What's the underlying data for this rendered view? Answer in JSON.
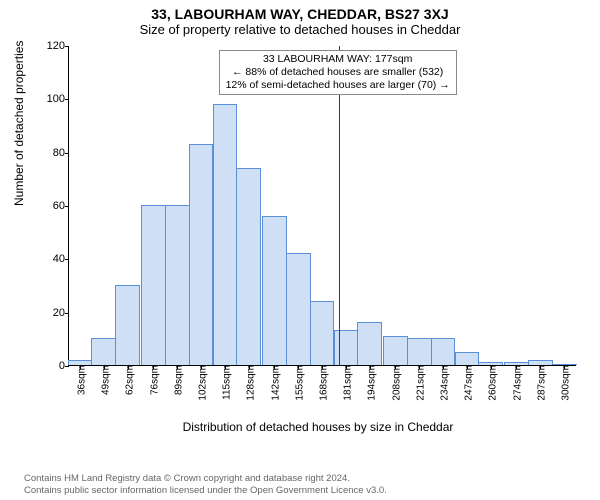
{
  "title": "33, LABOURHAM WAY, CHEDDAR, BS27 3XJ",
  "subtitle": "Size of property relative to detached houses in Cheddar",
  "ylabel": "Number of detached properties",
  "xlabel": "Distribution of detached houses by size in Cheddar",
  "credit_line1": "Contains HM Land Registry data © Crown copyright and database right 2024.",
  "credit_line2": "Contains public sector information licensed under the Open Government Licence v3.0.",
  "chart": {
    "type": "histogram",
    "background_color": "#ffffff",
    "bar_fill": "#cfe0f6",
    "bar_stroke": "#5b8fd6",
    "ylim": [
      0,
      120
    ],
    "ytick_step": 20,
    "yticks": [
      0,
      20,
      40,
      60,
      80,
      100,
      120
    ],
    "xlim": [
      30,
      307
    ],
    "xticks": [
      36,
      49,
      62,
      76,
      89,
      102,
      115,
      128,
      142,
      155,
      168,
      181,
      194,
      208,
      221,
      234,
      247,
      260,
      274,
      287,
      300
    ],
    "xtick_suffix": "sqm",
    "bin_width": 13.5,
    "values": [
      2,
      10,
      30,
      60,
      60,
      83,
      98,
      74,
      56,
      42,
      24,
      13,
      16,
      11,
      10,
      10,
      5,
      1,
      1,
      2,
      0
    ],
    "reference_line": {
      "x": 177,
      "color": "#cc0000"
    },
    "annotation": {
      "lines": [
        "33 LABOURHAM WAY: 177sqm",
        "← 88% of detached houses are smaller (532)",
        "12% of semi-detached houses are larger (70) →"
      ],
      "border_color": "#888888"
    }
  }
}
